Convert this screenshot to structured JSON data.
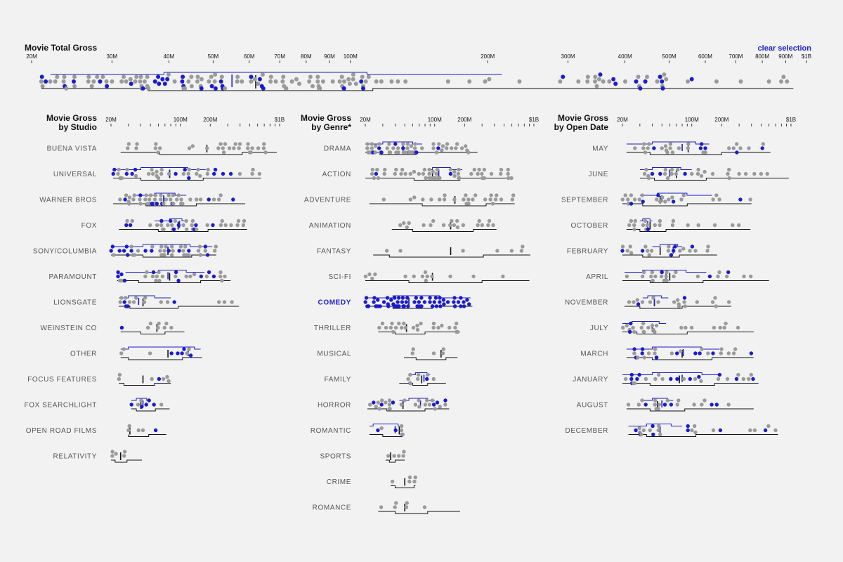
{
  "clear_selection_label": "clear selection",
  "colors": {
    "selected": "#1b1bd0",
    "unselected": "#9a9a9a",
    "box": "#111111",
    "background": "#f2f2f2"
  },
  "chart_data": [
    {
      "type": "scatter",
      "id": "total",
      "title": "Movie Total Gross",
      "scale": "log",
      "ticks": [
        {
          "v": 20,
          "l": "20M"
        },
        {
          "v": 30,
          "l": "30M"
        },
        {
          "v": 40,
          "l": "40M"
        },
        {
          "v": 50,
          "l": "50M"
        },
        {
          "v": 60,
          "l": "60M"
        },
        {
          "v": 70,
          "l": "70M"
        },
        {
          "v": 80,
          "l": "80M"
        },
        {
          "v": 90,
          "l": "90M"
        },
        {
          "v": 100,
          "l": "100M"
        },
        {
          "v": 200,
          "l": "200M"
        },
        {
          "v": 300,
          "l": "300M"
        },
        {
          "v": 400,
          "l": "400M"
        },
        {
          "v": 500,
          "l": "500M"
        },
        {
          "v": 600,
          "l": "600M"
        },
        {
          "v": 700,
          "l": "700M"
        },
        {
          "v": 800,
          "l": "800M"
        },
        {
          "v": 900,
          "l": "900M"
        },
        {
          "v": 1000,
          "l": "$1B"
        }
      ],
      "rows": [
        {
          "label": "",
          "min": 21,
          "q1": 36,
          "median": 62,
          "q3": 112,
          "max": 936,
          "n": 170,
          "sel_share": 0.22,
          "sel_box": [
            22,
            39,
            55,
            215
          ],
          "sparse": 0.05
        }
      ]
    },
    {
      "type": "scatter",
      "id": "studio",
      "title": "Movie Gross by Studio",
      "scale": "log",
      "ticks": [
        {
          "v": 20,
          "l": "20M"
        },
        {
          "v": 100,
          "l": "100M"
        },
        {
          "v": 200,
          "l": "200M"
        },
        {
          "v": 1000,
          "l": "$1B"
        }
      ],
      "rows": [
        {
          "label": "BUENA VISTA",
          "min": 25,
          "q1": 62,
          "median": 185,
          "q3": 420,
          "max": 936,
          "n": 30,
          "sel_share": 0,
          "sel_box": null
        },
        {
          "label": "UNIVERSAL",
          "min": 21,
          "q1": 40,
          "median": 78,
          "q3": 170,
          "max": 650,
          "n": 40,
          "sel_share": 0.45,
          "sel_box": [
            22,
            40,
            78,
            180
          ]
        },
        {
          "label": "WARNER BROS",
          "min": 21,
          "q1": 45,
          "median": 68,
          "q3": 145,
          "max": 450,
          "n": 50,
          "sel_share": 0.28,
          "sel_box": [
            35,
            55,
            68,
            115
          ]
        },
        {
          "label": "FOX",
          "min": 24,
          "q1": 60,
          "median": 95,
          "q3": 190,
          "max": 470,
          "n": 40,
          "sel_share": 0.15,
          "sel_box": [
            55,
            78,
            98,
            110
          ]
        },
        {
          "label": "SONY/COLUMBIA",
          "min": 20,
          "q1": 42,
          "median": 75,
          "q3": 130,
          "max": 230,
          "n": 45,
          "sel_share": 0.38,
          "sel_box": [
            20,
            42,
            75,
            210
          ]
        },
        {
          "label": "PARAMOUNT",
          "min": 23,
          "q1": 38,
          "median": 78,
          "q3": 160,
          "max": 320,
          "n": 30,
          "sel_share": 0.2,
          "sel_box": [
            28,
            60,
            75,
            175
          ]
        },
        {
          "label": "LIONSGATE",
          "min": 24,
          "q1": 31,
          "median": 42,
          "q3": 95,
          "max": 390,
          "n": 18,
          "sel_share": 0.33,
          "sel_box": [
            24,
            30,
            38,
            80
          ]
        },
        {
          "label": "WEINSTEIN CO",
          "min": 25,
          "q1": 40,
          "median": 58,
          "q3": 70,
          "max": 110,
          "n": 8,
          "sel_share": 0.12,
          "sel_box": null
        },
        {
          "label": "OTHER",
          "min": 25,
          "q1": 30,
          "median": 75,
          "q3": 105,
          "max": 165,
          "n": 10,
          "sel_share": 0.3,
          "sel_box": [
            25,
            30,
            120,
            160
          ]
        },
        {
          "label": "FOCUS FEATURES",
          "min": 24,
          "q1": 27,
          "median": 42,
          "q3": 55,
          "max": 80,
          "n": 7,
          "sel_share": 0.14,
          "sel_box": null
        },
        {
          "label": "FOX SEARCHLIGHT",
          "min": 32,
          "q1": 36,
          "median": 40,
          "q3": 56,
          "max": 78,
          "n": 8,
          "sel_share": 0.4,
          "sel_box": [
            32,
            36,
            42,
            50
          ]
        },
        {
          "label": "OPEN ROAD FILMS",
          "min": 30,
          "q1": 30,
          "median": 31,
          "q3": 48,
          "max": 72,
          "n": 5,
          "sel_share": 0.25,
          "sel_box": null
        },
        {
          "label": "RELATIVITY",
          "min": 20,
          "q1": 22,
          "median": 25,
          "q3": 29,
          "max": 41,
          "n": 5,
          "sel_share": 0,
          "sel_box": null
        }
      ]
    },
    {
      "type": "scatter",
      "id": "genre",
      "title": "Movie Gross by Genre*",
      "scale": "log",
      "ticks": [
        {
          "v": 20,
          "l": "20M"
        },
        {
          "v": 100,
          "l": "100M"
        },
        {
          "v": 200,
          "l": "200M"
        },
        {
          "v": 1000,
          "l": "$1B"
        }
      ],
      "rows": [
        {
          "label": "DRAMA",
          "min": 20,
          "q1": 28,
          "median": 48,
          "q3": 65,
          "max": 270,
          "n": 70,
          "sel_share": 0.14,
          "sel_box": [
            20,
            30,
            48,
            75
          ]
        },
        {
          "label": "ACTION",
          "min": 20,
          "q1": 62,
          "median": 95,
          "q3": 180,
          "max": 620,
          "n": 55,
          "sel_share": 0.06,
          "sel_box": [
            85,
            95,
            110,
            190
          ]
        },
        {
          "label": "ADVENTURE",
          "min": 22,
          "q1": 75,
          "median": 160,
          "q3": 330,
          "max": 640,
          "n": 25,
          "sel_share": 0,
          "sel_box": null
        },
        {
          "label": "ANIMATION",
          "min": 37,
          "q1": 60,
          "median": 145,
          "q3": 245,
          "max": 420,
          "n": 20,
          "sel_share": 0,
          "sel_box": null
        },
        {
          "label": "FANTASY",
          "min": 24,
          "q1": 35,
          "median": 145,
          "q3": 310,
          "max": 920,
          "n": 7,
          "sel_share": 0,
          "sel_box": null
        },
        {
          "label": "SCI-FI",
          "min": 20,
          "q1": 55,
          "median": 95,
          "q3": 300,
          "max": 900,
          "n": 14,
          "sel_share": 0,
          "sel_box": null
        },
        {
          "label": "COMEDY",
          "min": 20,
          "q1": 38,
          "median": 55,
          "q3": 95,
          "max": 240,
          "n": 70,
          "sel_share": 1,
          "sel_box": [
            20,
            38,
            55,
            230
          ],
          "selected": true
        },
        {
          "label": "THRILLER",
          "min": 27,
          "q1": 40,
          "median": 52,
          "q3": 80,
          "max": 180,
          "n": 25,
          "sel_share": 0,
          "sel_box": null
        },
        {
          "label": "MUSICAL",
          "min": 49,
          "q1": 65,
          "median": 116,
          "q3": 130,
          "max": 170,
          "n": 5,
          "sel_share": 0,
          "sel_box": null
        },
        {
          "label": "FAMILY",
          "min": 44,
          "q1": 60,
          "median": 74,
          "q3": 85,
          "max": 130,
          "n": 10,
          "sel_share": 0.25,
          "sel_box": [
            55,
            64,
            78,
            90
          ]
        },
        {
          "label": "HORROR",
          "min": 21,
          "q1": 33,
          "median": 48,
          "q3": 80,
          "max": 140,
          "n": 28,
          "sel_share": 0.18,
          "sel_box": [
            44,
            55,
            72,
            100
          ]
        },
        {
          "label": "ROMANTIC",
          "min": 22,
          "q1": 30,
          "median": 44,
          "q3": 47,
          "max": 48,
          "n": 8,
          "sel_share": 0.5,
          "sel_box": [
            22,
            24,
            40,
            46
          ]
        },
        {
          "label": "SPORTS",
          "min": 32,
          "q1": 35,
          "median": 36,
          "q3": 40,
          "max": 50,
          "n": 5,
          "sel_share": 0,
          "sel_box": null
        },
        {
          "label": "CRIME",
          "min": 36,
          "q1": 40,
          "median": 50,
          "q3": 62,
          "max": 64,
          "n": 5,
          "sel_share": 0,
          "sel_box": null
        },
        {
          "label": "ROMANCE",
          "min": 27,
          "q1": 40,
          "median": 50,
          "q3": 85,
          "max": 180,
          "n": 6,
          "sel_share": 0,
          "sel_box": null
        }
      ]
    },
    {
      "type": "scatter",
      "id": "month",
      "title": "Movie Gross by Open Date",
      "scale": "log",
      "ticks": [
        {
          "v": 20,
          "l": "20M"
        },
        {
          "v": 100,
          "l": "100M"
        },
        {
          "v": 200,
          "l": "200M"
        },
        {
          "v": 1000,
          "l": "$1B"
        }
      ],
      "rows": [
        {
          "label": "MAY",
          "min": 22,
          "q1": 38,
          "median": 92,
          "q3": 200,
          "max": 620,
          "n": 30,
          "sel_share": 0.3,
          "sel_box": [
            22,
            40,
            80,
            150
          ]
        },
        {
          "label": "JUNE",
          "min": 30,
          "q1": 42,
          "median": 70,
          "q3": 140,
          "max": 950,
          "n": 28,
          "sel_share": 0.2,
          "sel_box": [
            30,
            40,
            60,
            100
          ]
        },
        {
          "label": "SEPTEMBER",
          "min": 20,
          "q1": 32,
          "median": 48,
          "q3": 90,
          "max": 400,
          "n": 25,
          "sel_share": 0.2,
          "sel_box": [
            30,
            45,
            50,
            160
          ]
        },
        {
          "label": "OCTOBER",
          "min": 22,
          "q1": 30,
          "median": 38,
          "q3": 55,
          "max": 390,
          "n": 20,
          "sel_share": 0.08,
          "sel_box": [
            30,
            32,
            36,
            40
          ]
        },
        {
          "label": "FEBRUARY",
          "min": 20,
          "q1": 32,
          "median": 48,
          "q3": 75,
          "max": 180,
          "n": 22,
          "sel_share": 0.25,
          "sel_box": [
            40,
            48,
            65,
            80
          ]
        },
        {
          "label": "APRIL",
          "min": 20,
          "q1": 38,
          "median": 60,
          "q3": 130,
          "max": 600,
          "n": 24,
          "sel_share": 0.15,
          "sel_box": [
            21,
            32,
            55,
            140
          ]
        },
        {
          "label": "NOVEMBER",
          "min": 21,
          "q1": 30,
          "median": 42,
          "q3": 80,
          "max": 250,
          "n": 20,
          "sel_share": 0.08,
          "sel_box": [
            32,
            36,
            42,
            58
          ]
        },
        {
          "label": "JULY",
          "min": 20,
          "q1": 28,
          "median": 40,
          "q3": 90,
          "max": 420,
          "n": 24,
          "sel_share": 0.25,
          "sel_box": [
            20,
            25,
            40,
            55
          ]
        },
        {
          "label": "MARCH",
          "min": 22,
          "q1": 40,
          "median": 80,
          "q3": 160,
          "max": 420,
          "n": 26,
          "sel_share": 0.28,
          "sel_box": [
            22,
            40,
            82,
            190
          ]
        },
        {
          "label": "JANUARY",
          "min": 20,
          "q1": 38,
          "median": 75,
          "q3": 170,
          "max": 470,
          "n": 28,
          "sel_share": 0.28,
          "sel_box": [
            20,
            40,
            80,
            200
          ]
        },
        {
          "label": "AUGUST",
          "min": 22,
          "q1": 38,
          "median": 45,
          "q3": 85,
          "max": 420,
          "n": 20,
          "sel_share": 0.3,
          "sel_box": [
            32,
            40,
            50,
            65
          ]
        },
        {
          "label": "DECEMBER",
          "min": 23,
          "q1": 35,
          "median": 48,
          "q3": 110,
          "max": 740,
          "n": 24,
          "sel_share": 0.2,
          "sel_box": [
            23,
            35,
            48,
            80
          ]
        }
      ]
    }
  ]
}
